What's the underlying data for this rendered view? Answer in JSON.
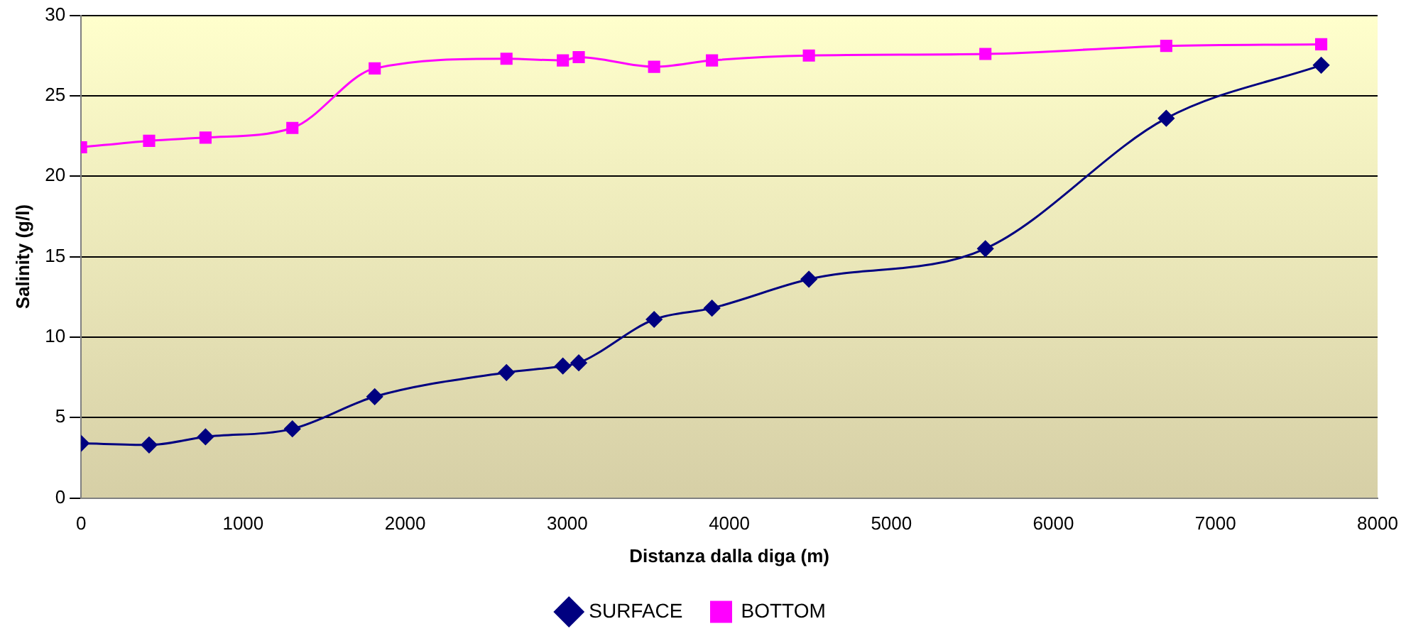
{
  "chart_data": {
    "type": "line",
    "xlabel": "Distanza dalla diga (m)",
    "ylabel": "Salinity (g/l)",
    "x": [
      0,
      420,
      768,
      1304,
      1812,
      2625,
      2973,
      3071,
      3536,
      3893,
      4491,
      5580,
      6696,
      7652
    ],
    "series": [
      {
        "name": "SURFACE",
        "color": "#000080",
        "marker": "diamond",
        "values": [
          3.4,
          3.3,
          3.8,
          4.3,
          6.3,
          7.8,
          8.2,
          8.4,
          11.1,
          11.8,
          13.6,
          15.5,
          23.6,
          26.9
        ]
      },
      {
        "name": "BOTTOM",
        "color": "#ff00ff",
        "marker": "square",
        "values": [
          21.8,
          22.2,
          22.4,
          23.0,
          26.7,
          27.3,
          27.2,
          27.4,
          26.8,
          27.2,
          27.5,
          27.6,
          28.1,
          28.2
        ]
      }
    ],
    "xlim": [
      0,
      8000
    ],
    "xticks": [
      0,
      1000,
      2000,
      3000,
      4000,
      5000,
      6000,
      7000,
      8000
    ],
    "ylim": [
      0,
      30
    ],
    "yticks": [
      0,
      5,
      10,
      15,
      20,
      25,
      30
    ],
    "grid": "y",
    "legend": "bottom",
    "line_style": "solid"
  }
}
